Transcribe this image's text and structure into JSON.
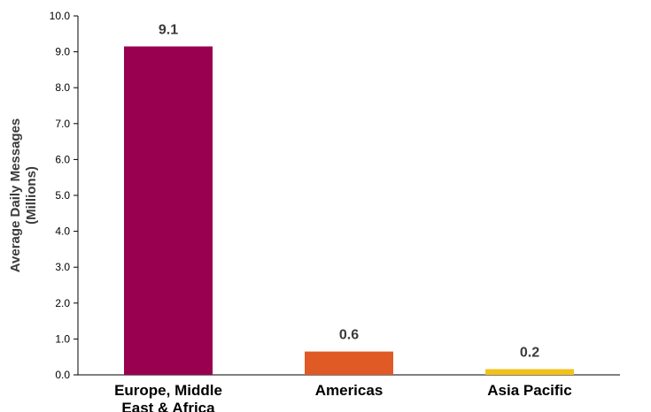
{
  "chart_data": {
    "type": "bar",
    "title": "",
    "ylabel": [
      "Average Daily Messages",
      "(Millions)"
    ],
    "xlabel": "",
    "ylim": [
      0,
      10
    ],
    "yticks": [
      "0.0",
      "1.0",
      "2.0",
      "3.0",
      "4.0",
      "5.0",
      "6.0",
      "7.0",
      "8.0",
      "9.0",
      "10.0"
    ],
    "grid": false,
    "categories": [
      [
        "Europe, Middle",
        "East & Africa"
      ],
      [
        "Americas"
      ],
      [
        "Asia Pacific"
      ]
    ],
    "values": [
      9.15,
      0.65,
      0.16
    ],
    "value_labels": [
      "9.1",
      "0.6",
      "0.2"
    ],
    "colors": [
      "#990050",
      "#e05a26",
      "#f2c21b"
    ]
  }
}
